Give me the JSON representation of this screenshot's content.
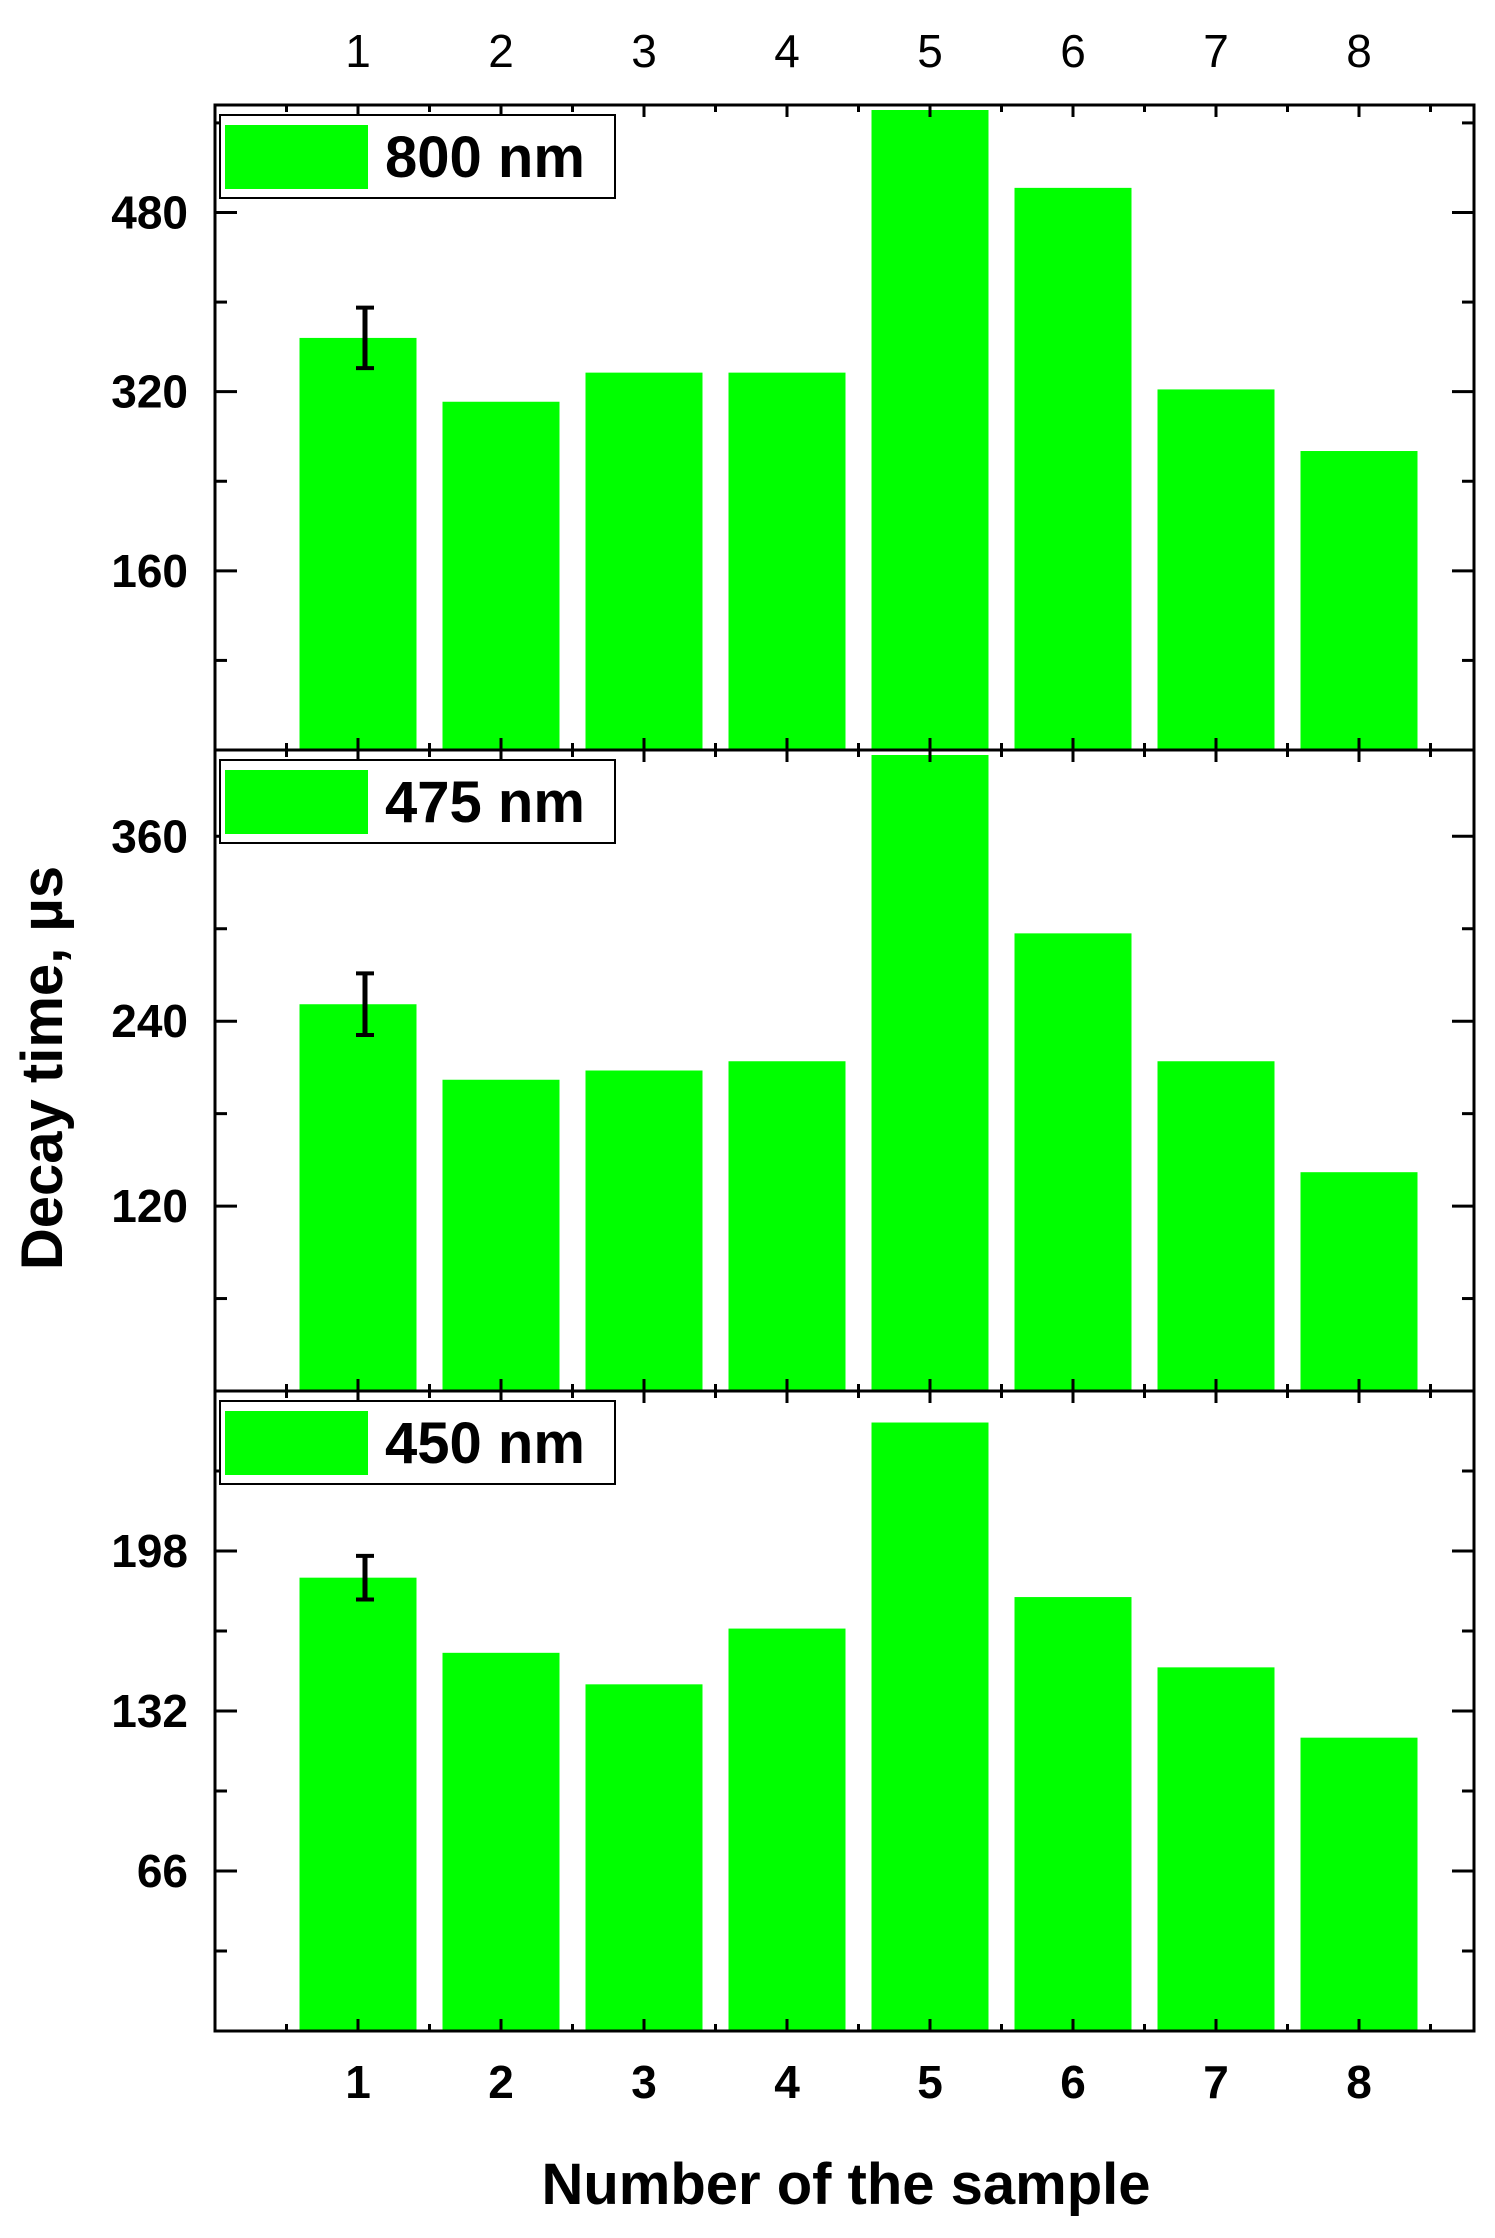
{
  "chart_data": {
    "type": "bar",
    "layout": "stacked-panels",
    "bar_color": "#00ff00",
    "xlabel": "Number of the sample",
    "ylabel": "Decay time, µs",
    "categories": [
      "1",
      "2",
      "3",
      "4",
      "5",
      "6",
      "7",
      "8"
    ],
    "panels": [
      {
        "legend": "800 nm",
        "values": [
          368,
          311,
          337,
          337,
          578,
          502,
          322,
          267
        ],
        "ylim": [
          0,
          576
        ],
        "yticks": [
          160,
          320,
          480
        ],
        "error_bar": {
          "index": 0,
          "value": 368,
          "err": 27
        }
      },
      {
        "legend": "475 nm",
        "values": [
          251,
          202,
          208,
          214,
          420,
          297,
          214,
          142
        ],
        "ylim": [
          0,
          416
        ],
        "yticks": [
          120,
          240,
          360
        ],
        "error_bar": {
          "index": 0,
          "value": 251,
          "err": 20
        }
      },
      {
        "legend": "450 nm",
        "values": [
          187,
          156,
          143,
          166,
          251,
          179,
          150,
          121
        ],
        "ylim": [
          0,
          264
        ],
        "yticks": [
          66,
          132,
          198
        ],
        "error_bar": {
          "index": 0,
          "value": 187,
          "err": 9
        }
      }
    ]
  }
}
